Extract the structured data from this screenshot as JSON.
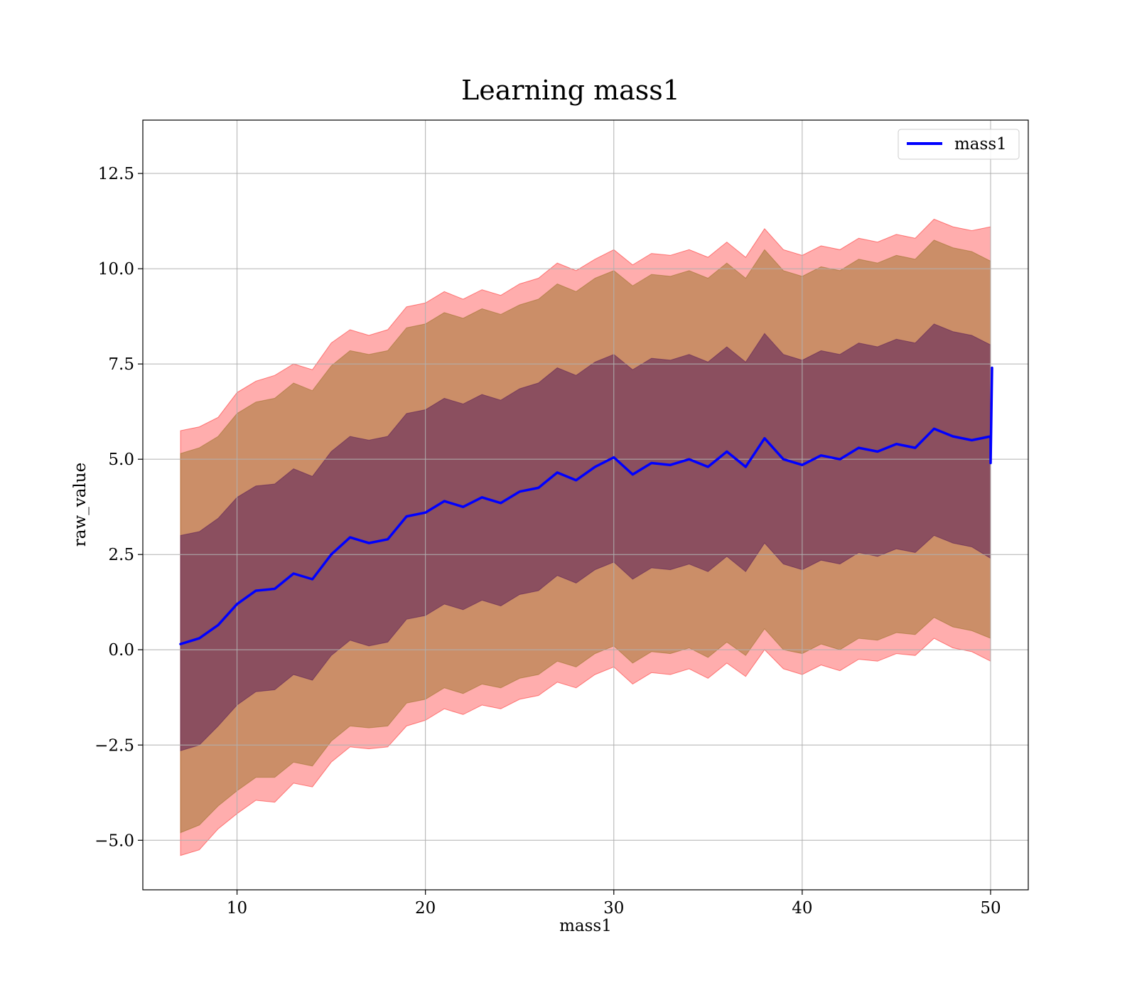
{
  "chart_data": {
    "type": "line",
    "title": "Learning mass1",
    "xlabel": "mass1",
    "ylabel": "raw_value",
    "xlim": [
      5,
      52
    ],
    "ylim": [
      -6.3,
      13.9
    ],
    "x_ticks": [
      10,
      20,
      30,
      40,
      50
    ],
    "x_tick_labels": [
      "10",
      "20",
      "30",
      "40",
      "50"
    ],
    "y_ticks": [
      -5.0,
      -2.5,
      0.0,
      2.5,
      5.0,
      7.5,
      10.0,
      12.5
    ],
    "y_tick_labels": [
      "−5.0",
      "−2.5",
      "0.0",
      "2.5",
      "5.0",
      "7.5",
      "10.0",
      "12.5"
    ],
    "grid": true,
    "legend": {
      "position": "top-right",
      "entries": [
        "mass1"
      ]
    },
    "colors": {
      "line": "#0000ff",
      "outer_band": "#ff0000",
      "middle_band": "#8b6914",
      "inner_band": "#4b0f55"
    },
    "x": [
      7,
      8,
      9,
      10,
      11,
      12,
      13,
      14,
      15,
      16,
      17,
      18,
      19,
      20,
      21,
      22,
      23,
      24,
      25,
      26,
      27,
      28,
      29,
      30,
      31,
      32,
      33,
      34,
      35,
      36,
      37,
      38,
      39,
      40,
      41,
      42,
      43,
      44,
      45,
      46,
      47,
      48,
      49,
      50
    ],
    "series": [
      {
        "name": "mass1",
        "values": [
          0.15,
          0.3,
          0.65,
          1.2,
          1.55,
          1.6,
          2.0,
          1.85,
          2.5,
          2.95,
          2.8,
          2.9,
          3.5,
          3.6,
          3.9,
          3.75,
          4.0,
          3.85,
          4.15,
          4.25,
          4.65,
          4.45,
          4.8,
          5.05,
          4.6,
          4.9,
          4.85,
          5.0,
          4.8,
          5.2,
          4.8,
          5.55,
          5.0,
          4.85,
          5.1,
          5.0,
          5.3,
          5.2,
          5.4,
          5.3,
          5.8,
          5.6,
          5.5,
          5.6
        ]
      }
    ],
    "end_spike": {
      "x": 50,
      "values": [
        4.9,
        7.4
      ]
    },
    "bands": [
      {
        "lower": [
          -5.4,
          -5.25,
          -4.7,
          -4.3,
          -3.95,
          -4.0,
          -3.5,
          -3.6,
          -2.95,
          -2.55,
          -2.6,
          -2.55,
          -2.0,
          -1.85,
          -1.55,
          -1.7,
          -1.45,
          -1.55,
          -1.3,
          -1.2,
          -0.85,
          -1.0,
          -0.65,
          -0.45,
          -0.9,
          -0.6,
          -0.65,
          -0.5,
          -0.75,
          -0.35,
          -0.7,
          0.0,
          -0.5,
          -0.65,
          -0.4,
          -0.55,
          -0.25,
          -0.3,
          -0.1,
          -0.15,
          0.3,
          0.05,
          -0.05,
          -0.3
        ],
        "upper": [
          5.75,
          5.85,
          6.1,
          6.75,
          7.05,
          7.2,
          7.5,
          7.35,
          8.05,
          8.4,
          8.25,
          8.4,
          9.0,
          9.1,
          9.4,
          9.2,
          9.45,
          9.3,
          9.6,
          9.75,
          10.15,
          9.95,
          10.25,
          10.5,
          10.1,
          10.4,
          10.35,
          10.5,
          10.3,
          10.7,
          10.3,
          11.05,
          10.5,
          10.35,
          10.6,
          10.5,
          10.8,
          10.7,
          10.9,
          10.8,
          11.3,
          11.1,
          11.0,
          11.1
        ]
      },
      {
        "lower": [
          -4.8,
          -4.6,
          -4.1,
          -3.7,
          -3.35,
          -3.35,
          -2.95,
          -3.05,
          -2.4,
          -2.0,
          -2.05,
          -2.0,
          -1.4,
          -1.3,
          -1.0,
          -1.15,
          -0.9,
          -1.0,
          -0.75,
          -0.65,
          -0.3,
          -0.45,
          -0.1,
          0.1,
          -0.35,
          -0.05,
          -0.1,
          0.05,
          -0.2,
          0.2,
          -0.15,
          0.55,
          0.0,
          -0.1,
          0.15,
          0.0,
          0.3,
          0.25,
          0.45,
          0.4,
          0.85,
          0.6,
          0.5,
          0.3
        ],
        "upper": [
          5.15,
          5.3,
          5.6,
          6.2,
          6.5,
          6.6,
          7.0,
          6.8,
          7.45,
          7.85,
          7.75,
          7.85,
          8.45,
          8.55,
          8.85,
          8.7,
          8.95,
          8.8,
          9.05,
          9.2,
          9.6,
          9.4,
          9.75,
          9.95,
          9.55,
          9.85,
          9.8,
          9.95,
          9.75,
          10.15,
          9.75,
          10.5,
          9.95,
          9.8,
          10.05,
          9.95,
          10.25,
          10.15,
          10.35,
          10.25,
          10.75,
          10.55,
          10.45,
          10.2
        ]
      },
      {
        "lower": [
          -2.65,
          -2.5,
          -2.0,
          -1.45,
          -1.1,
          -1.05,
          -0.65,
          -0.8,
          -0.15,
          0.25,
          0.1,
          0.2,
          0.8,
          0.9,
          1.2,
          1.05,
          1.3,
          1.15,
          1.45,
          1.55,
          1.95,
          1.75,
          2.1,
          2.3,
          1.85,
          2.15,
          2.1,
          2.25,
          2.05,
          2.45,
          2.05,
          2.8,
          2.25,
          2.1,
          2.35,
          2.25,
          2.55,
          2.45,
          2.65,
          2.55,
          3.0,
          2.8,
          2.7,
          2.4
        ],
        "upper": [
          3.0,
          3.1,
          3.45,
          4.0,
          4.3,
          4.35,
          4.75,
          4.55,
          5.2,
          5.6,
          5.5,
          5.6,
          6.2,
          6.3,
          6.6,
          6.45,
          6.7,
          6.55,
          6.85,
          7.0,
          7.4,
          7.2,
          7.55,
          7.75,
          7.35,
          7.65,
          7.6,
          7.75,
          7.55,
          7.95,
          7.55,
          8.3,
          7.75,
          7.6,
          7.85,
          7.75,
          8.05,
          7.95,
          8.15,
          8.05,
          8.55,
          8.35,
          8.25,
          8.0
        ]
      }
    ]
  }
}
